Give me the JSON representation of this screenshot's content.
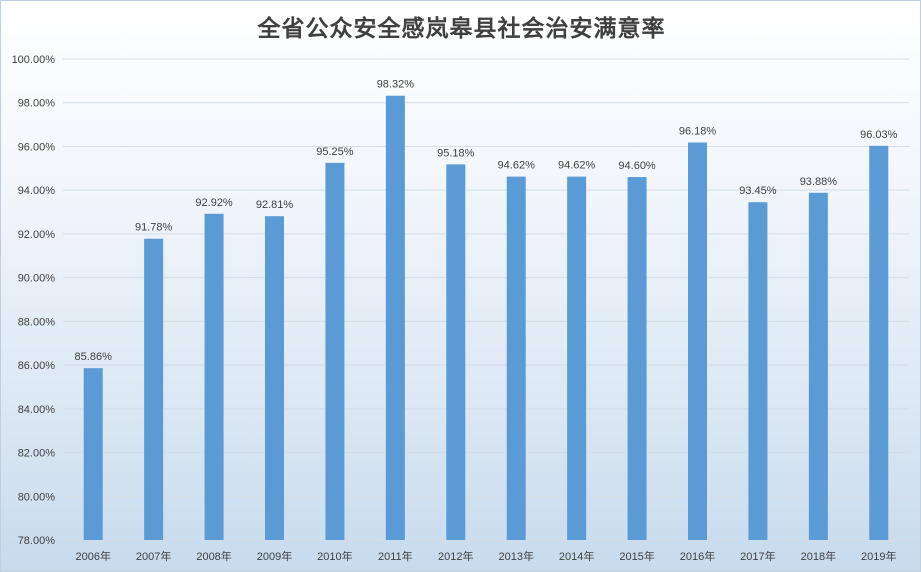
{
  "chart_data": {
    "type": "bar",
    "title": "全省公众安全感岚皋县社会治安满意率",
    "xlabel": "",
    "ylabel": "",
    "categories": [
      "2006年",
      "2007年",
      "2008年",
      "2009年",
      "2010年",
      "2011年",
      "2012年",
      "2013年",
      "2014年",
      "2015年",
      "2016年",
      "2017年",
      "2018年",
      "2019年"
    ],
    "values": [
      85.86,
      91.78,
      92.92,
      92.81,
      95.25,
      98.32,
      95.18,
      94.62,
      94.62,
      94.6,
      96.18,
      93.45,
      93.88,
      96.03
    ],
    "data_labels": [
      "85.86%",
      "91.78%",
      "92.92%",
      "92.81%",
      "95.25%",
      "98.32%",
      "95.18%",
      "94.62%",
      "94.62%",
      "94.60%",
      "96.18%",
      "93.45%",
      "93.88%",
      "96.03%"
    ],
    "ylim": [
      78,
      100
    ],
    "yticks": [
      78,
      80,
      82,
      84,
      86,
      88,
      90,
      92,
      94,
      96,
      98,
      100
    ],
    "ytick_labels": [
      "78.00%",
      "80.00%",
      "82.00%",
      "84.00%",
      "86.00%",
      "88.00%",
      "90.00%",
      "92.00%",
      "94.00%",
      "96.00%",
      "98.00%",
      "100.00%"
    ],
    "grid": true,
    "legend": "none",
    "bar_color": "#5b9bd5"
  }
}
